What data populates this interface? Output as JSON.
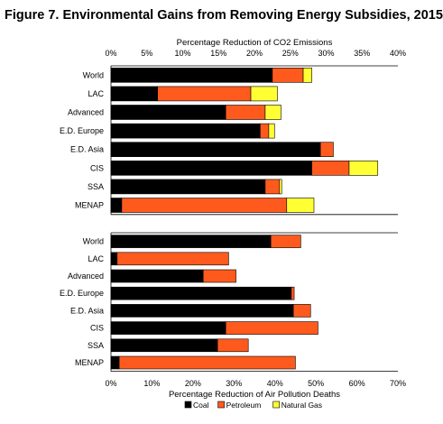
{
  "title": "Figure 7. Environmental Gains from Removing Energy Subsidies, 2015",
  "legend": [
    {
      "name": "Coal",
      "color": "#000000"
    },
    {
      "name": "Petroleum",
      "color": "#ff5a1e"
    },
    {
      "name": "Natural Gas",
      "color": "#ffff33"
    }
  ],
  "chart_data": [
    {
      "type": "bar",
      "orientation": "horizontal",
      "stacked": true,
      "title": "",
      "xlabel": "Percentage Reduction of CO2 Emissions",
      "xaxis_position": "top",
      "xlim": [
        0,
        40
      ],
      "xticks": [
        "0%",
        "5%",
        "10%",
        "15%",
        "20%",
        "25%",
        "30%",
        "35%",
        "40%"
      ],
      "grid": false,
      "categories": [
        "World",
        "LAC",
        "Advanced",
        "E.D. Europe",
        "E.D. Asia",
        "CIS",
        "SSA",
        "MENAP"
      ],
      "series": [
        {
          "name": "Coal",
          "values": [
            22.5,
            6.5,
            16.0,
            20.8,
            29.2,
            28.0,
            21.5,
            1.5
          ]
        },
        {
          "name": "Petroleum",
          "values": [
            4.3,
            13.0,
            5.5,
            1.2,
            1.8,
            5.2,
            2.0,
            23.0
          ]
        },
        {
          "name": "Natural Gas",
          "values": [
            1.2,
            3.7,
            2.2,
            0.8,
            0.0,
            4.0,
            0.3,
            3.8
          ]
        }
      ]
    },
    {
      "type": "bar",
      "orientation": "horizontal",
      "stacked": true,
      "title": "",
      "xlabel": "Percentage Reduction of Air Pollution Deaths",
      "xaxis_position": "bottom",
      "xlim": [
        0,
        70
      ],
      "xticks": [
        "0%",
        "10%",
        "20%",
        "30%",
        "40%",
        "50%",
        "60%",
        "70%"
      ],
      "grid": false,
      "categories": [
        "World",
        "LAC",
        "Advanced",
        "E.D. Europe",
        "E.D. Asia",
        "CIS",
        "SSA",
        "MENAP"
      ],
      "series": [
        {
          "name": "Coal",
          "values": [
            39.0,
            1.5,
            22.5,
            44.0,
            44.5,
            28.0,
            26.0,
            2.0
          ]
        },
        {
          "name": "Petroleum",
          "values": [
            7.3,
            27.2,
            8.0,
            0.7,
            4.2,
            22.5,
            7.5,
            43.0
          ]
        },
        {
          "name": "Natural Gas",
          "values": [
            0,
            0,
            0,
            0,
            0,
            0,
            0,
            0
          ]
        }
      ]
    }
  ]
}
